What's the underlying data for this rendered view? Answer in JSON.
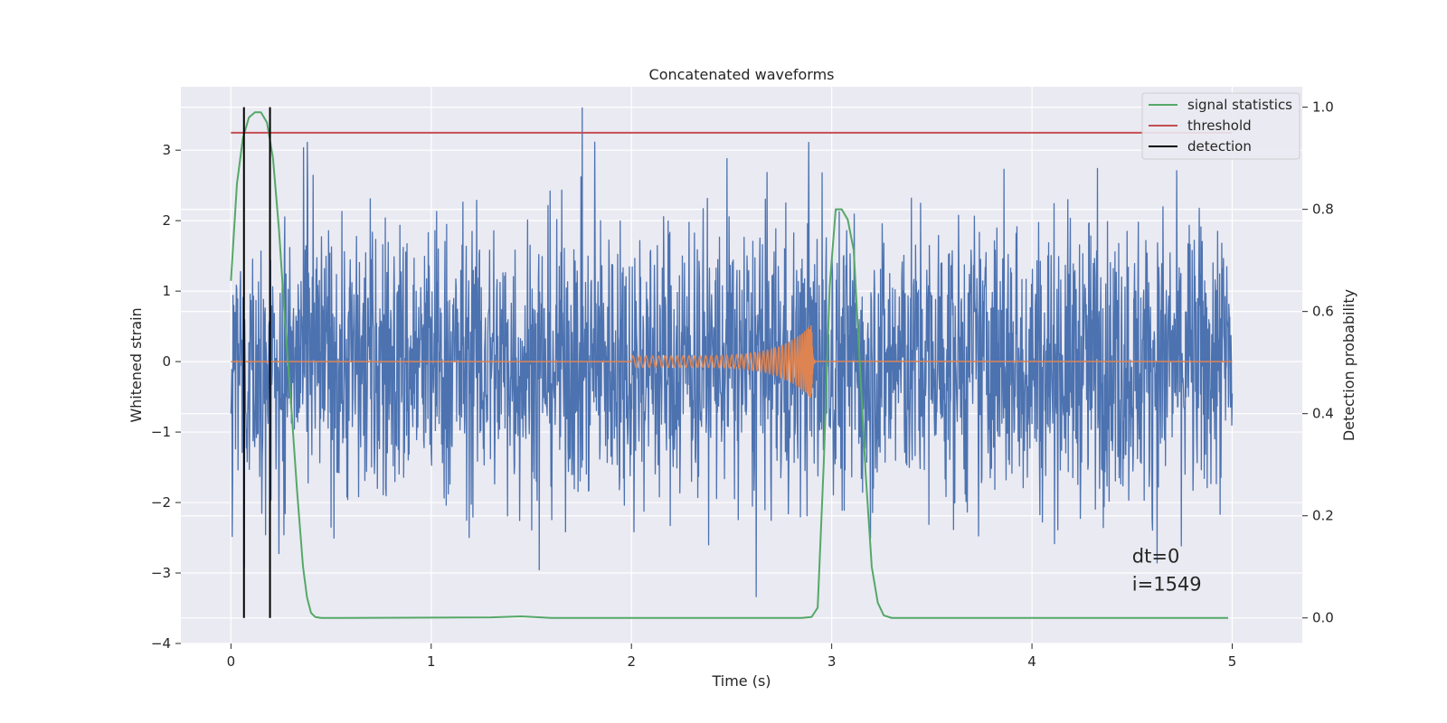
{
  "chart_data": {
    "type": "line",
    "title": "Concatenated waveforms",
    "xlabel": "Time (s)",
    "ylabel": "Whitened strain",
    "ylabel_right": "Detection probability",
    "xlim": [
      -0.25,
      5.35
    ],
    "ylim": [
      -4,
      3.9
    ],
    "ylim_right": [
      -0.05,
      1.04
    ],
    "xticks": [
      0,
      1,
      2,
      3,
      4,
      5
    ],
    "xtick_labels": [
      "0",
      "1",
      "2",
      "3",
      "4",
      "5"
    ],
    "yticks": [
      -4,
      -3,
      -2,
      -1,
      0,
      1,
      2,
      3
    ],
    "ytick_labels": [
      "−4",
      "−3",
      "−2",
      "−1",
      "0",
      "1",
      "2",
      "3"
    ],
    "yticks_right": [
      0.0,
      0.2,
      0.4,
      0.6,
      0.8,
      1.0
    ],
    "ytick_labels_right": [
      "0.0",
      "0.2",
      "0.4",
      "0.6",
      "0.8",
      "1.0"
    ],
    "grid": true,
    "legend_position": "top-right",
    "legend": [
      {
        "label": "signal statistics",
        "color": "#55a868"
      },
      {
        "label": "threshold",
        "color": "#c44e52"
      },
      {
        "label": "detection",
        "color": "#000000"
      }
    ],
    "colors": {
      "noise": "#4c72b0",
      "chirp": "#dd8452",
      "statistics": "#55a868",
      "threshold": "#c44e52",
      "detection": "#000000",
      "plot_background": "#eaeaf2",
      "grid": "#ffffff"
    },
    "series": [
      {
        "axis": "left",
        "color": "#4c72b0",
        "description_range": [
          0,
          5
        ],
        "approx_envelope": {
          "typical_abs": 1.6,
          "max": 3.6,
          "min": -3.65
        }
      },
      {
        "axis": "left",
        "color": "#dd8452",
        "chirp": {
          "t_start": 2.0,
          "t_merge": 2.9,
          "amp_start": 0.08,
          "amp_peak": 0.55
        }
      },
      {
        "name": "signal statistics",
        "axis": "right",
        "color": "#55a868",
        "x": [
          0.0,
          0.03,
          0.06,
          0.09,
          0.12,
          0.15,
          0.18,
          0.21,
          0.24,
          0.27,
          0.3,
          0.33,
          0.36,
          0.38,
          0.4,
          0.42,
          0.45,
          0.5,
          1.3,
          1.45,
          1.6,
          2.85,
          2.9,
          2.93,
          2.96,
          2.99,
          3.02,
          3.05,
          3.08,
          3.11,
          3.14,
          3.17,
          3.2,
          3.23,
          3.26,
          3.3,
          4.98
        ],
        "y": [
          0.66,
          0.85,
          0.94,
          0.98,
          0.99,
          0.99,
          0.97,
          0.9,
          0.76,
          0.58,
          0.42,
          0.25,
          0.1,
          0.04,
          0.01,
          0.002,
          0.0,
          0.0,
          0.001,
          0.003,
          0.0,
          0.0,
          0.002,
          0.02,
          0.3,
          0.65,
          0.8,
          0.8,
          0.78,
          0.72,
          0.5,
          0.28,
          0.1,
          0.03,
          0.005,
          0.0,
          0.0
        ]
      },
      {
        "name": "threshold",
        "axis": "right",
        "color": "#c44e52",
        "x": [
          0.0,
          5.0
        ],
        "y": [
          0.95,
          0.95
        ]
      }
    ],
    "detections": [
      0.065,
      0.195
    ],
    "detection_range_right": [
      0.0,
      1.0
    ],
    "annotations": [
      {
        "text": "dt=0",
        "x": 4.5,
        "y": -2.85
      },
      {
        "text": "i=1549",
        "x": 4.5,
        "y": -3.25
      }
    ]
  }
}
